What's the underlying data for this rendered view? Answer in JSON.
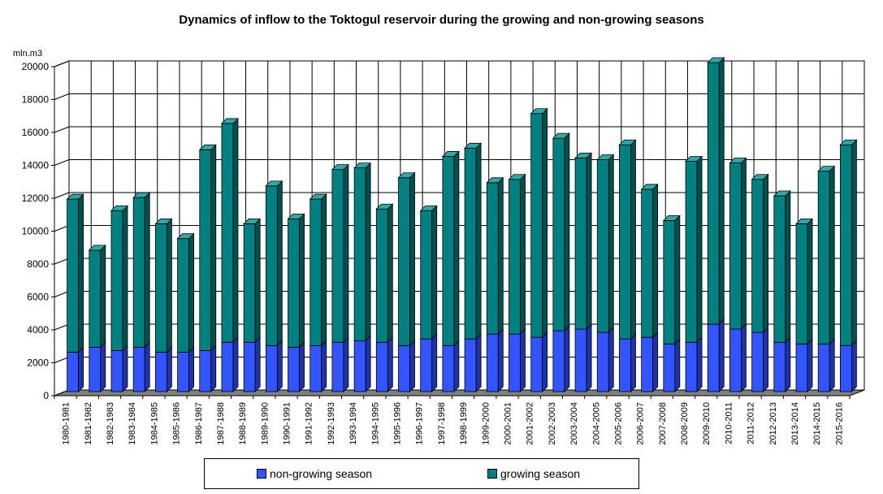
{
  "chart_data": {
    "type": "bar",
    "stacked": true,
    "three_d": true,
    "title": "Dynamics of inflow to the Toktogul reservoir during the growing and non-growing seasons",
    "ylabel": "mln.m3",
    "ylim": [
      0,
      20000
    ],
    "ytick_step": 2000,
    "yticks": [
      "0",
      "2000",
      "4000",
      "6000",
      "8000",
      "10000",
      "12000",
      "14000",
      "16000",
      "18000",
      "20000"
    ],
    "grid": true,
    "legend_position": "bottom",
    "categories": [
      "1980-1981",
      "1981-1982",
      "1982-1983",
      "1983-1984",
      "1984-1985",
      "1985-1986",
      "1986-1987",
      "1987-1988",
      "1988-1989",
      "1989-1990",
      "1990-1991",
      "1991-1992",
      "1992-1993",
      "1993-1994",
      "1994-1995",
      "1995-1996",
      "1996-1997",
      "1997-1998",
      "1998-1999",
      "1999-2000",
      "2000-2001",
      "2001-2002",
      "2002-2003",
      "2003-2004",
      "2004-2005",
      "2005-2006",
      "2006-2007",
      "2007-2008",
      "2008-2009",
      "2009-2010",
      "2010-2011",
      "2011-2012",
      "2012-2013",
      "2013-2014",
      "2014-2015",
      "2015-2016"
    ],
    "series": [
      {
        "name": "non-growing season",
        "color": "#3355ff",
        "side_color": "#1f33a8",
        "top_color": "#6680ff",
        "values": [
          2400,
          2700,
          2500,
          2700,
          2400,
          2400,
          2500,
          3000,
          3000,
          2800,
          2700,
          2800,
          3000,
          3100,
          3000,
          2800,
          3200,
          2800,
          3200,
          3500,
          3500,
          3300,
          3700,
          3800,
          3600,
          3200,
          3300,
          2900,
          3000,
          4100,
          3800,
          3600,
          3000,
          2900,
          2900,
          2800
        ]
      },
      {
        "name": "growing season",
        "color": "#008080",
        "side_color": "#005050",
        "top_color": "#30a8a8",
        "values": [
          9300,
          5900,
          8500,
          9100,
          7800,
          6900,
          12200,
          13300,
          7200,
          9700,
          7800,
          8900,
          10500,
          10500,
          8100,
          10200,
          7800,
          11500,
          11600,
          9200,
          9400,
          13600,
          11700,
          10400,
          10500,
          11800,
          9000,
          7500,
          11000,
          15900,
          10100,
          9300,
          8900,
          7300,
          10500,
          12200
        ]
      }
    ]
  }
}
